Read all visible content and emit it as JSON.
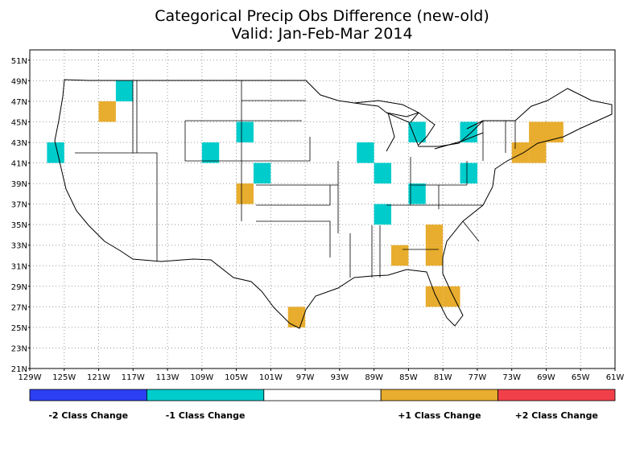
{
  "title": {
    "line1": "Categorical Precip Obs Difference (new-old)",
    "line2": "Valid: Jan-Feb-Mar 2014"
  },
  "axes": {
    "lat_labels": [
      "51N",
      "49N",
      "47N",
      "45N",
      "43N",
      "41N",
      "39N",
      "37N",
      "35N",
      "33N",
      "31N",
      "29N",
      "27N",
      "25N",
      "23N",
      "21N"
    ],
    "lon_labels": [
      "129W",
      "125W",
      "121W",
      "117W",
      "113W",
      "109W",
      "105W",
      "101W",
      "97W",
      "93W",
      "89W",
      "85W",
      "81W",
      "77W",
      "73W",
      "69W",
      "65W",
      "61W"
    ]
  },
  "colors": {
    "minus2": "#2d3ff2",
    "minus1": "#00cccc",
    "zero": "#ffffff",
    "plus1": "#e8ad2e",
    "plus2": "#f2404a",
    "grid": "#9a9a9a"
  },
  "legend": [
    {
      "label": "-2 Class Change",
      "color": "#2d3ff2"
    },
    {
      "label": "-1 Class Change",
      "color": "#00cccc"
    },
    {
      "label": "",
      "color": "#ffffff"
    },
    {
      "label": "+1 Class Change",
      "color": "#e8ad2e"
    },
    {
      "label": "+2 Class Change",
      "color": "#f2404a"
    }
  ],
  "chart_data": {
    "type": "heatmap",
    "title": "Categorical Precip Obs Difference (new-old)",
    "subtitle": "Valid: Jan-Feb-Mar 2014",
    "xlim": [
      -129,
      -61
    ],
    "ylim": [
      21,
      52
    ],
    "grid": true,
    "cell_size_deg": 2,
    "cells": [
      {
        "lon": -118,
        "lat": 48,
        "value": -1
      },
      {
        "lon": -120,
        "lat": 46,
        "value": 1
      },
      {
        "lon": -126,
        "lat": 42,
        "value": -1
      },
      {
        "lon": -104,
        "lat": 44,
        "value": -1
      },
      {
        "lon": -108,
        "lat": 42,
        "value": -1
      },
      {
        "lon": -102,
        "lat": 40,
        "value": -1
      },
      {
        "lon": -104,
        "lat": 38,
        "value": 1
      },
      {
        "lon": -90,
        "lat": 42,
        "value": -1
      },
      {
        "lon": -88,
        "lat": 40,
        "value": -1
      },
      {
        "lon": -84,
        "lat": 44,
        "value": -1
      },
      {
        "lon": -84,
        "lat": 38,
        "value": -1
      },
      {
        "lon": -88,
        "lat": 36,
        "value": -1
      },
      {
        "lon": -78,
        "lat": 44,
        "value": -1
      },
      {
        "lon": -78,
        "lat": 40,
        "value": -1
      },
      {
        "lon": -70,
        "lat": 44,
        "value": 1
      },
      {
        "lon": -68,
        "lat": 44,
        "value": 1
      },
      {
        "lon": -72,
        "lat": 42,
        "value": 1
      },
      {
        "lon": -70,
        "lat": 42,
        "value": 1
      },
      {
        "lon": -82,
        "lat": 34,
        "value": 1
      },
      {
        "lon": -82,
        "lat": 32,
        "value": 1
      },
      {
        "lon": -86,
        "lat": 32,
        "value": 1
      },
      {
        "lon": -82,
        "lat": 28,
        "value": 1
      },
      {
        "lon": -80,
        "lat": 28,
        "value": 1
      },
      {
        "lon": -98,
        "lat": 26,
        "value": 1
      }
    ]
  }
}
